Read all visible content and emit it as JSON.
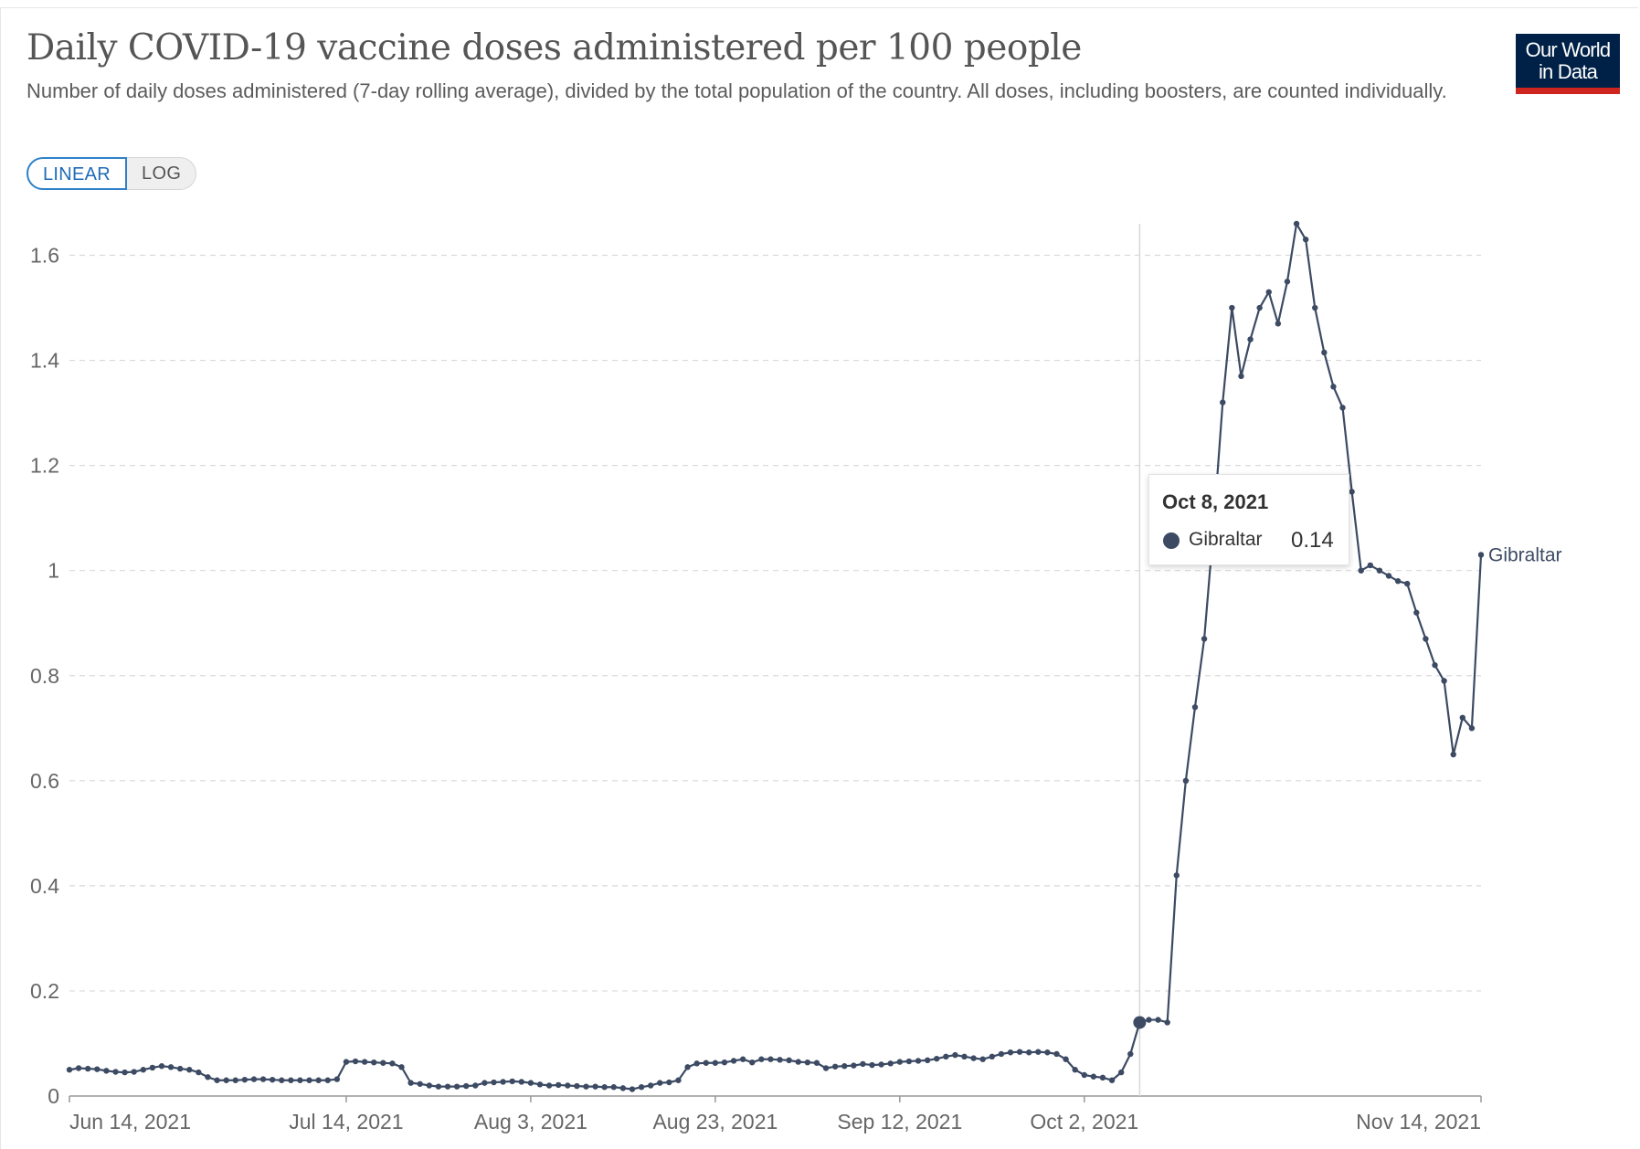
{
  "header": {
    "title": "Daily COVID-19 vaccine doses administered per 100 people",
    "subtitle": "Number of daily doses administered (7-day rolling average), divided by the total population of the country. All doses, including boosters, are counted individually.",
    "logo_line1": "Our World",
    "logo_line2": "in Data"
  },
  "toggle": {
    "linear_label": "LINEAR",
    "log_label": "LOG",
    "selected": "LINEAR"
  },
  "tooltip": {
    "date": "Oct 8, 2021",
    "series": "Gibraltar",
    "value": "0.14"
  },
  "colors": {
    "series": "#3c4a63",
    "grid": "#d9d9d9",
    "axis_text": "#666666",
    "logo_bg": "#002147",
    "logo_bar": "#ce261e",
    "toggle_active": "#2f80c8"
  },
  "chart_data": {
    "type": "line",
    "series": [
      {
        "name": "Gibraltar",
        "start_date": "2021-06-14",
        "values": [
          0.05,
          0.053,
          0.052,
          0.051,
          0.048,
          0.046,
          0.045,
          0.046,
          0.05,
          0.054,
          0.057,
          0.055,
          0.052,
          0.05,
          0.045,
          0.036,
          0.03,
          0.03,
          0.03,
          0.031,
          0.032,
          0.032,
          0.031,
          0.03,
          0.03,
          0.03,
          0.03,
          0.03,
          0.03,
          0.032,
          0.065,
          0.066,
          0.065,
          0.064,
          0.063,
          0.062,
          0.055,
          0.025,
          0.023,
          0.02,
          0.018,
          0.018,
          0.018,
          0.019,
          0.02,
          0.025,
          0.026,
          0.027,
          0.028,
          0.027,
          0.025,
          0.022,
          0.02,
          0.021,
          0.02,
          0.019,
          0.018,
          0.018,
          0.017,
          0.017,
          0.015,
          0.013,
          0.017,
          0.02,
          0.025,
          0.026,
          0.03,
          0.055,
          0.062,
          0.063,
          0.063,
          0.064,
          0.067,
          0.07,
          0.064,
          0.07,
          0.07,
          0.069,
          0.068,
          0.065,
          0.064,
          0.063,
          0.053,
          0.056,
          0.057,
          0.058,
          0.061,
          0.059,
          0.06,
          0.062,
          0.065,
          0.066,
          0.067,
          0.068,
          0.071,
          0.075,
          0.078,
          0.075,
          0.072,
          0.07,
          0.075,
          0.08,
          0.083,
          0.084,
          0.083,
          0.084,
          0.083,
          0.08,
          0.07,
          0.05,
          0.04,
          0.037,
          0.035,
          0.03,
          0.045,
          0.08,
          0.14,
          0.145,
          0.145,
          0.14,
          0.42,
          0.6,
          0.74,
          0.87,
          1.08,
          1.32,
          1.5,
          1.37,
          1.44,
          1.5,
          1.53,
          1.47,
          1.55,
          1.66,
          1.63,
          1.5,
          1.415,
          1.35,
          1.31,
          1.15,
          1.0,
          1.01,
          1.0,
          0.99,
          0.98,
          0.975,
          0.92,
          0.87,
          0.82,
          0.79,
          0.65,
          0.72,
          0.7,
          1.03
        ]
      }
    ],
    "x_tick_labels": [
      "Jun 14, 2021",
      "Jul 14, 2021",
      "Aug 3, 2021",
      "Aug 23, 2021",
      "Sep 12, 2021",
      "Oct 2, 2021",
      "Nov 14, 2021"
    ],
    "y_ticks": [
      0,
      0.2,
      0.4,
      0.6,
      0.8,
      1,
      1.2,
      1.4,
      1.6
    ],
    "y_tick_labels": [
      "0",
      "0.2",
      "0.4",
      "0.6",
      "0.8",
      "1",
      "1.2",
      "1.4",
      "1.6"
    ],
    "ylim": [
      0,
      1.66
    ],
    "xlim": [
      "2021-06-14",
      "2021-11-14"
    ],
    "scale": "linear",
    "grid": "horizontal dashed",
    "series_label": "Gibraltar",
    "highlight": {
      "date": "2021-10-08",
      "value": 0.14
    }
  }
}
